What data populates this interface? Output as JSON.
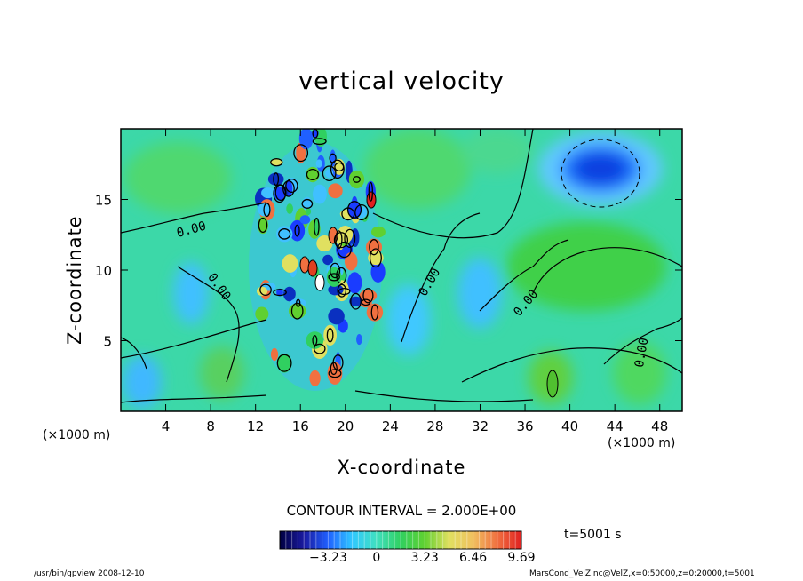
{
  "chart_data": {
    "type": "heatmap",
    "title": "vertical velocity",
    "xlabel": "X-coordinate",
    "ylabel": "Z-coordinate",
    "x_unit_label": "(×1000 m)",
    "xlim": [
      0,
      50
    ],
    "ylim": [
      0,
      20
    ],
    "x_ticks": [
      4,
      8,
      12,
      16,
      20,
      24,
      28,
      32,
      36,
      40,
      44,
      48
    ],
    "y_ticks": [
      5,
      10,
      15
    ],
    "contour_labels": [
      "0.00",
      "0.00",
      "0.00",
      "0.00",
      "0.00",
      "0.00"
    ],
    "contour_interval_text": "CONTOUR INTERVAL = 2.000E+00",
    "colorbar": {
      "ticks": [
        "−3.23",
        "0",
        "3.23",
        "6.46",
        "9.69"
      ],
      "tick_values": [
        -3.23,
        0,
        3.23,
        6.46,
        9.69
      ],
      "min": -6.46,
      "max": 9.69
    },
    "time_label": "t=5001 s",
    "features": [
      {
        "kind": "downdraft",
        "x": 43,
        "z": 17,
        "value": -3.5
      },
      {
        "kind": "updraft",
        "x": 38.5,
        "z": 2,
        "value": 1.5
      },
      {
        "kind": "turbulent-region",
        "x": 18.5,
        "z": 12,
        "value": 9.69
      }
    ],
    "grid": false
  },
  "footer": {
    "left": "/usr/bin/gpview   2008-12-10",
    "right": "MarsCond_VelZ.nc@VelZ,x=0:50000,z=0:20000,t=5001"
  }
}
